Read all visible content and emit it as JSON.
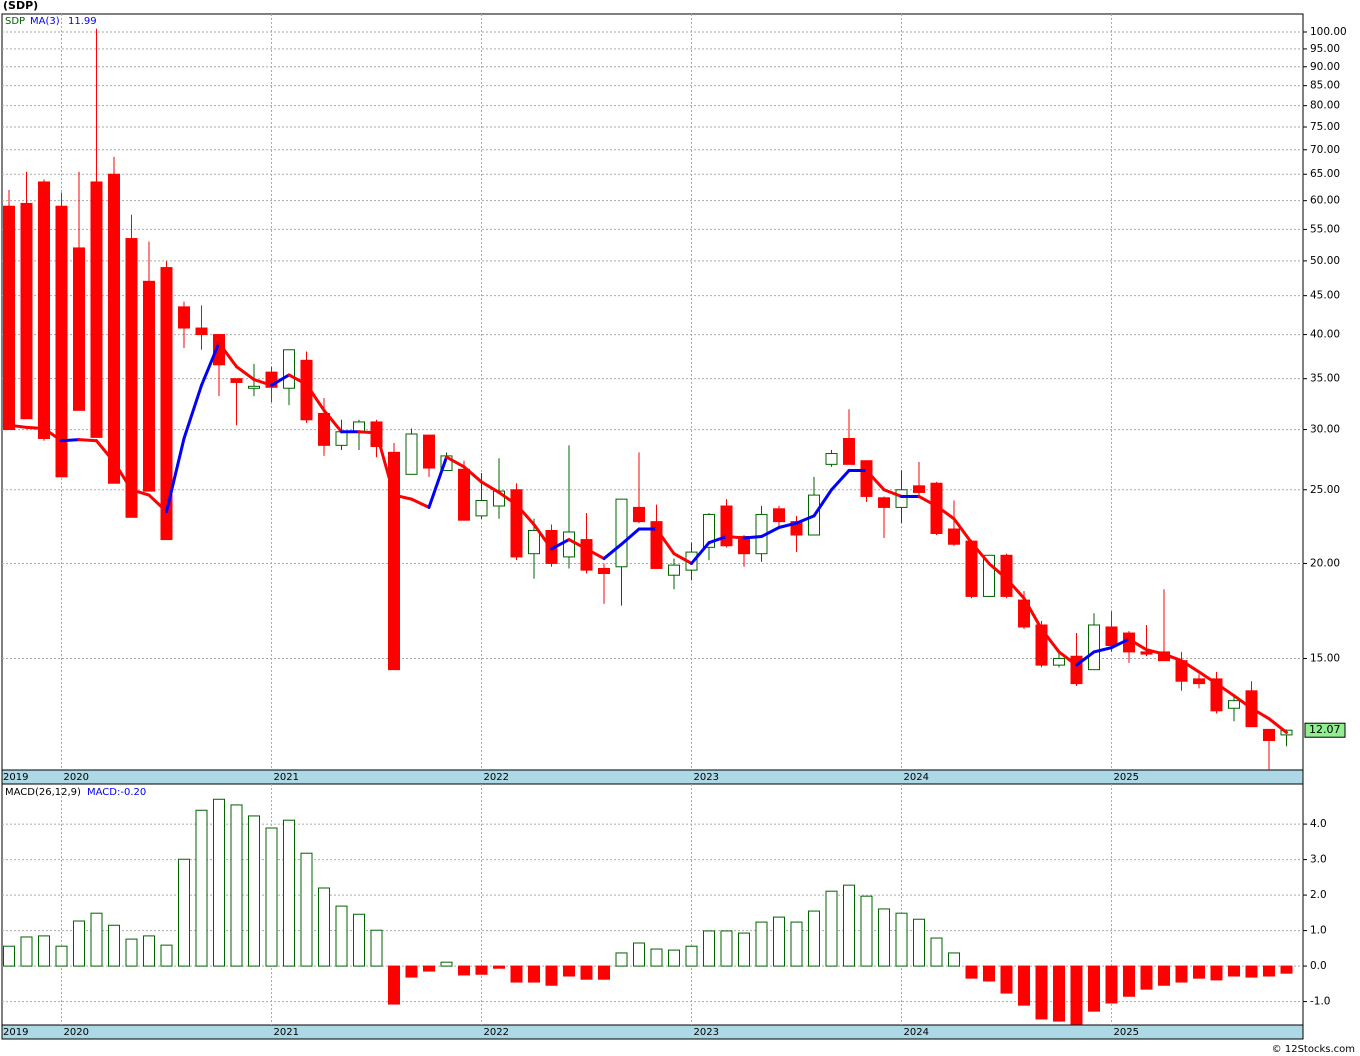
{
  "title": "(SDP)",
  "footer": "© 12Stocks.com",
  "chart_data": [
    {
      "type": "candlestick",
      "symbol": "SDP",
      "indicator": "MA(3)",
      "categories": [
        "2019",
        null,
        null,
        "2020",
        null,
        null,
        null,
        null,
        null,
        null,
        null,
        null,
        null,
        null,
        null,
        "2021",
        null,
        null,
        null,
        null,
        null,
        null,
        null,
        null,
        null,
        null,
        null,
        "2022",
        null,
        null,
        null,
        null,
        null,
        null,
        null,
        null,
        null,
        null,
        null,
        "2023",
        null,
        null,
        null,
        null,
        null,
        null,
        null,
        null,
        null,
        null,
        null,
        "2024",
        null,
        null,
        null,
        null,
        null,
        null,
        null,
        null,
        null,
        null,
        null,
        "2025",
        null,
        null,
        null,
        null,
        null,
        null,
        null,
        null,
        null,
        null
      ],
      "open": [
        59,
        59.5,
        63.5,
        59,
        52,
        63.5,
        65,
        53.5,
        47,
        49,
        43.5,
        40.8,
        40,
        35,
        34,
        35.7,
        34,
        37,
        31.5,
        28.6,
        29.8,
        30.7,
        28,
        26.2,
        29.5,
        26.5,
        26.6,
        23.1,
        23.8,
        25,
        20.6,
        22.1,
        20.4,
        21.5,
        19.7,
        19.8,
        23.7,
        22.7,
        19.3,
        19.6,
        21,
        23.8,
        21.7,
        20.6,
        23.6,
        22.7,
        21.8,
        27,
        29.2,
        27.3,
        24.4,
        23.7,
        25.3,
        25.5,
        22.2,
        21.4,
        18.1,
        20.5,
        17.9,
        16.6,
        14.7,
        15.1,
        14.5,
        16.5,
        16.2,
        15.3,
        15.3,
        14.9,
        14.1,
        14.1,
        12.9,
        13.6,
        12.1,
        11.9
      ],
      "high": [
        62,
        65.5,
        64,
        61.5,
        65.5,
        101,
        68.5,
        57.5,
        53,
        50,
        44.2,
        43.7,
        40,
        35,
        36.6,
        36.3,
        38.2,
        38,
        33,
        30.9,
        30.9,
        30.9,
        28.8,
        30.1,
        29.5,
        28,
        27.3,
        26.3,
        27.5,
        25.5,
        22.9,
        22.5,
        28.6,
        23.3,
        20,
        24.3,
        28,
        23.9,
        20.3,
        21.3,
        23.3,
        24.3,
        21.8,
        23.8,
        23.8,
        23.1,
        26,
        28.2,
        31.9,
        27.3,
        24.5,
        26.5,
        27.2,
        25.6,
        24.2,
        21.5,
        20.5,
        20.6,
        18.4,
        16.8,
        15.3,
        16.2,
        17.2,
        17.3,
        16.3,
        16.6,
        18.5,
        15.3,
        14.3,
        14.4,
        13.4,
        14,
        12.1,
        12.1
      ],
      "low": [
        30,
        31,
        29,
        26,
        31.8,
        29.3,
        25.5,
        23,
        24.9,
        21.5,
        38.4,
        38.2,
        33.2,
        30.4,
        33.2,
        32.6,
        32.3,
        30.6,
        27.7,
        28.2,
        28.2,
        27.6,
        14.5,
        26.2,
        26,
        26.5,
        22.8,
        22.9,
        22.9,
        20.2,
        19.1,
        19.8,
        19.7,
        19.4,
        17.7,
        17.6,
        22.6,
        19.7,
        18.5,
        19,
        20.2,
        21,
        19.8,
        20.1,
        22.4,
        20.7,
        21.8,
        26.8,
        27,
        24.1,
        21.6,
        22.6,
        24.5,
        21.8,
        21.1,
        18,
        18.1,
        18,
        16.4,
        14.6,
        14.6,
        13.8,
        14.5,
        15.3,
        14.8,
        15.1,
        14.9,
        13.6,
        13.7,
        12.7,
        12.4,
        12.2,
        10.7,
        11.5
      ],
      "close": [
        30,
        31,
        29.2,
        26,
        31.8,
        29.3,
        25.5,
        23,
        24.9,
        21.5,
        40.8,
        40,
        36.5,
        34.6,
        34.2,
        34.1,
        38.2,
        30.9,
        28.6,
        29.8,
        30.7,
        28.5,
        14.5,
        29.6,
        26.7,
        27.7,
        22.8,
        24.2,
        24.9,
        20.4,
        22.1,
        20,
        22,
        19.6,
        19.4,
        24.3,
        22.7,
        19.7,
        19.9,
        20.7,
        23.2,
        21.1,
        20.6,
        23.2,
        22.7,
        21.8,
        24.6,
        27.9,
        27,
        24.5,
        23.7,
        25,
        24.8,
        21.9,
        21.2,
        18.1,
        20.5,
        18.1,
        16.5,
        14.7,
        15,
        13.9,
        16.6,
        15.6,
        15.3,
        15.2,
        14.9,
        14,
        13.9,
        12.8,
        13.2,
        12.2,
        11.7,
        12.07
      ],
      "ma": [
        30.4,
        30.2,
        30.1,
        29,
        29.1,
        29,
        27.2,
        25,
        24.6,
        23.4,
        29.2,
        34.3,
        39,
        36.3,
        34.9,
        34.3,
        35.4,
        34.4,
        31.8,
        29.8,
        29.8,
        29.7,
        24.6,
        24.3,
        23.7,
        27.6,
        26.8,
        25.6,
        24.8,
        23.9,
        22.5,
        20.9,
        21.5,
        20.9,
        20.3,
        21.2,
        22.2,
        22.2,
        20.6,
        20,
        21.3,
        21.7,
        21.6,
        21.7,
        22.3,
        22.6,
        23.1,
        25,
        26.5,
        26.5,
        25,
        24.5,
        24.5,
        23.8,
        22.9,
        21.3,
        20,
        19.1,
        18,
        16.4,
        15.3,
        14.7,
        15.3,
        15.5,
        15.9,
        15.4,
        15.2,
        14.9,
        14.4,
        13.9,
        13.4,
        12.9,
        12.5,
        11.99
      ],
      "up_color": "#006400",
      "down_color": "#ff0000",
      "ma_up_color": "#0000ff",
      "ma_down_color": "#ff0000",
      "log_scale": true,
      "grid": true,
      "ylim": [
        10.7,
        105.6
      ],
      "yticks": [
        {
          "value": 100,
          "label": "100.00"
        },
        {
          "value": 95,
          "label": "95.00"
        },
        {
          "value": 90,
          "label": "90.00"
        },
        {
          "value": 85,
          "label": "85.00"
        },
        {
          "value": 80,
          "label": "80.00"
        },
        {
          "value": 75,
          "label": "75.00"
        },
        {
          "value": 70,
          "label": "70.00"
        },
        {
          "value": 65,
          "label": "65.00"
        },
        {
          "value": 60,
          "label": "60.00"
        },
        {
          "value": 55,
          "label": "55.00"
        },
        {
          "value": 50,
          "label": "50.00"
        },
        {
          "value": 45,
          "label": "45.00"
        },
        {
          "value": 40,
          "label": "40.00"
        },
        {
          "value": 35,
          "label": "35.00"
        },
        {
          "value": 30,
          "label": "30.00"
        },
        {
          "value": 25,
          "label": "25.00"
        },
        {
          "value": 20,
          "label": "20.00"
        },
        {
          "value": 15,
          "label": "15.00"
        }
      ]
    },
    {
      "type": "bar",
      "title": "MACD(26,12,9)",
      "value_text": "MACD:-0.20",
      "categories": [
        "2019",
        null,
        null,
        "2020",
        null,
        null,
        null,
        null,
        null,
        null,
        null,
        null,
        null,
        null,
        null,
        "2021",
        null,
        null,
        null,
        null,
        null,
        null,
        null,
        null,
        null,
        null,
        null,
        "2022",
        null,
        null,
        null,
        null,
        null,
        null,
        null,
        null,
        null,
        null,
        null,
        "2023",
        null,
        null,
        null,
        null,
        null,
        null,
        null,
        null,
        null,
        null,
        null,
        "2024",
        null,
        null,
        null,
        null,
        null,
        null,
        null,
        null,
        null,
        null,
        null,
        "2025",
        null,
        null,
        null,
        null,
        null,
        null,
        null,
        null,
        null,
        null
      ],
      "values": [
        0.56,
        0.82,
        0.85,
        0.56,
        1.27,
        1.49,
        1.15,
        0.76,
        0.85,
        0.59,
        3.01,
        4.39,
        4.7,
        4.54,
        4.23,
        3.89,
        4.11,
        3.18,
        2.2,
        1.69,
        1.46,
        1.01,
        -1.07,
        -0.31,
        -0.14,
        0.11,
        -0.25,
        -0.23,
        -0.06,
        -0.45,
        -0.45,
        -0.54,
        -0.28,
        -0.37,
        -0.37,
        0.37,
        0.65,
        0.48,
        0.45,
        0.56,
        0.99,
        0.99,
        0.93,
        1.24,
        1.38,
        1.24,
        1.55,
        2.11,
        2.28,
        1.97,
        1.61,
        1.49,
        1.32,
        0.79,
        0.37,
        -0.34,
        -0.42,
        -0.76,
        -1.1,
        -1.49,
        -1.55,
        -1.63,
        -1.27,
        -1.04,
        -0.85,
        -0.65,
        -0.54,
        -0.45,
        -0.34,
        -0.39,
        -0.28,
        -0.31,
        -0.28,
        -0.2
      ],
      "pos_color": "#006400",
      "neg_color": "#ff0000",
      "grid": true,
      "ylim": [
        -1.66,
        5.13
      ],
      "yticks": [
        {
          "value": 4,
          "label": "4.0"
        },
        {
          "value": 3,
          "label": "3.0"
        },
        {
          "value": 2,
          "label": "2.0"
        },
        {
          "value": 1,
          "label": "1.0"
        },
        {
          "value": 0,
          "label": "0.0"
        },
        {
          "value": -1,
          "label": "-1.0"
        }
      ]
    }
  ]
}
